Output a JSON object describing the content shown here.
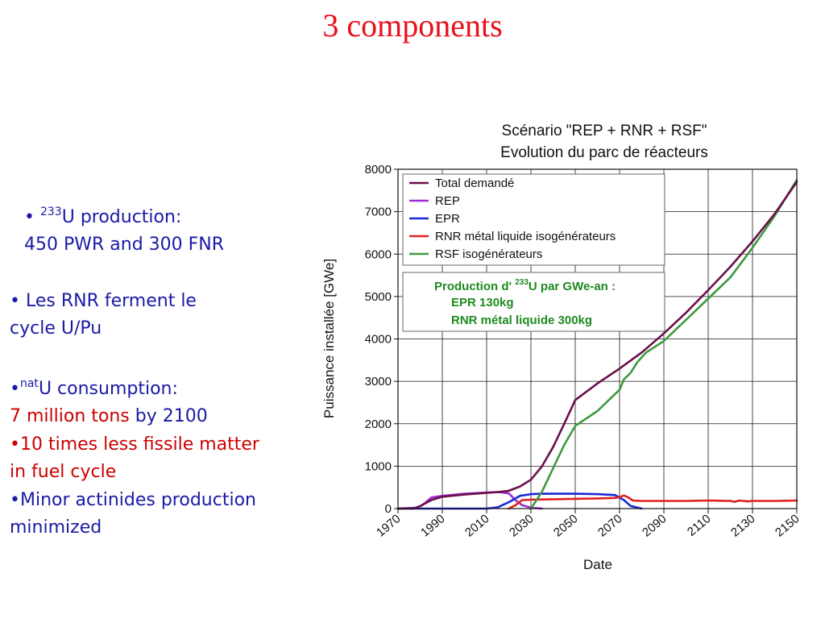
{
  "slide": {
    "title": "3 components",
    "b1": {
      "prefix": "• ",
      "sup": "233",
      "rest": "U production:",
      "line2": "450 PWR and 300 FNR"
    },
    "b2": {
      "line1": "• Les RNR ferment le",
      "line2": "cycle U/Pu"
    },
    "b3": {
      "prefix": "•",
      "sup": "nat",
      "rest": "U consumption:",
      "red_part": "7 million  tons",
      "blue_part": " by 2100"
    },
    "b4": {
      "line1": "•10 times less fissile matter",
      "line2": "in fuel cycle"
    },
    "b5": {
      "line1": "•Minor actinides production",
      "line2": "minimized"
    }
  },
  "chart_data": {
    "type": "line",
    "title": "Scénario \"REP + RNR + RSF\"",
    "subtitle": "Evolution du parc de réacteurs",
    "xlabel": "Date",
    "ylabel": "Puissance installée [GWe]",
    "xlim": [
      1970,
      2150
    ],
    "ylim": [
      0,
      8000
    ],
    "xticks": [
      "1970",
      "1990",
      "2010",
      "2030",
      "2050",
      "2070",
      "2090",
      "2110",
      "2130",
      "2150"
    ],
    "yticks": [
      "0",
      "1000",
      "2000",
      "3000",
      "4000",
      "5000",
      "6000",
      "7000",
      "8000"
    ],
    "grid": true,
    "legend_position": "top-left",
    "series": [
      {
        "name": "Total demandé",
        "color": "#6b0f4b",
        "x": [
          1970,
          1977,
          1979,
          1985,
          1990,
          2000,
          2010,
          2015,
          2020,
          2025,
          2030,
          2035,
          2040,
          2045,
          2050,
          2060,
          2070,
          2080,
          2090,
          2100,
          2110,
          2120,
          2130,
          2140,
          2150
        ],
        "y": [
          0,
          0,
          30,
          200,
          280,
          330,
          370,
          390,
          420,
          520,
          680,
          1000,
          1450,
          2000,
          2560,
          2950,
          3300,
          3680,
          4130,
          4620,
          5150,
          5700,
          6300,
          6950,
          7700
        ]
      },
      {
        "name": "REP",
        "color": "#9a2fd0",
        "x": [
          1970,
          1978,
          1981,
          1985,
          1990,
          2000,
          2010,
          2015,
          2020,
          2023,
          2026,
          2030,
          2035
        ],
        "y": [
          0,
          20,
          80,
          260,
          300,
          350,
          380,
          390,
          360,
          200,
          80,
          20,
          0
        ]
      },
      {
        "name": "EPR",
        "color": "#1a28d8",
        "x": [
          1970,
          2010,
          2015,
          2020,
          2025,
          2030,
          2035,
          2050,
          2060,
          2068,
          2072,
          2075,
          2080
        ],
        "y": [
          0,
          0,
          30,
          150,
          300,
          340,
          350,
          350,
          340,
          320,
          200,
          60,
          0
        ]
      },
      {
        "name": "RNR métal liquide isogénérateurs",
        "color": "#e02020",
        "x": [
          2020,
          2023,
          2026,
          2030,
          2040,
          2050,
          2060,
          2068,
          2070,
          2072,
          2074,
          2076,
          2080,
          2090,
          2100,
          2110,
          2120,
          2122,
          2124,
          2128,
          2130,
          2140,
          2150
        ],
        "y": [
          0,
          80,
          200,
          210,
          220,
          230,
          240,
          250,
          270,
          310,
          260,
          190,
          180,
          180,
          180,
          190,
          180,
          160,
          190,
          170,
          180,
          180,
          190
        ]
      },
      {
        "name": "RSF isogénérateurs",
        "color": "#3f9a3f",
        "x": [
          2030,
          2035,
          2040,
          2045,
          2050,
          2060,
          2070,
          2072,
          2075,
          2078,
          2082,
          2090,
          2100,
          2110,
          2120,
          2125,
          2130,
          2140,
          2150
        ],
        "y": [
          0,
          400,
          950,
          1500,
          1950,
          2300,
          2800,
          3050,
          3200,
          3450,
          3680,
          3950,
          4450,
          4950,
          5450,
          5800,
          6150,
          6900,
          7750
        ]
      }
    ],
    "annotation": {
      "title": "Production d'",
      "title_sup": "233",
      "title_rest": "U par GWe-an :",
      "line1": "EPR   130kg",
      "line2": "RNR métal liquide   300kg"
    }
  }
}
